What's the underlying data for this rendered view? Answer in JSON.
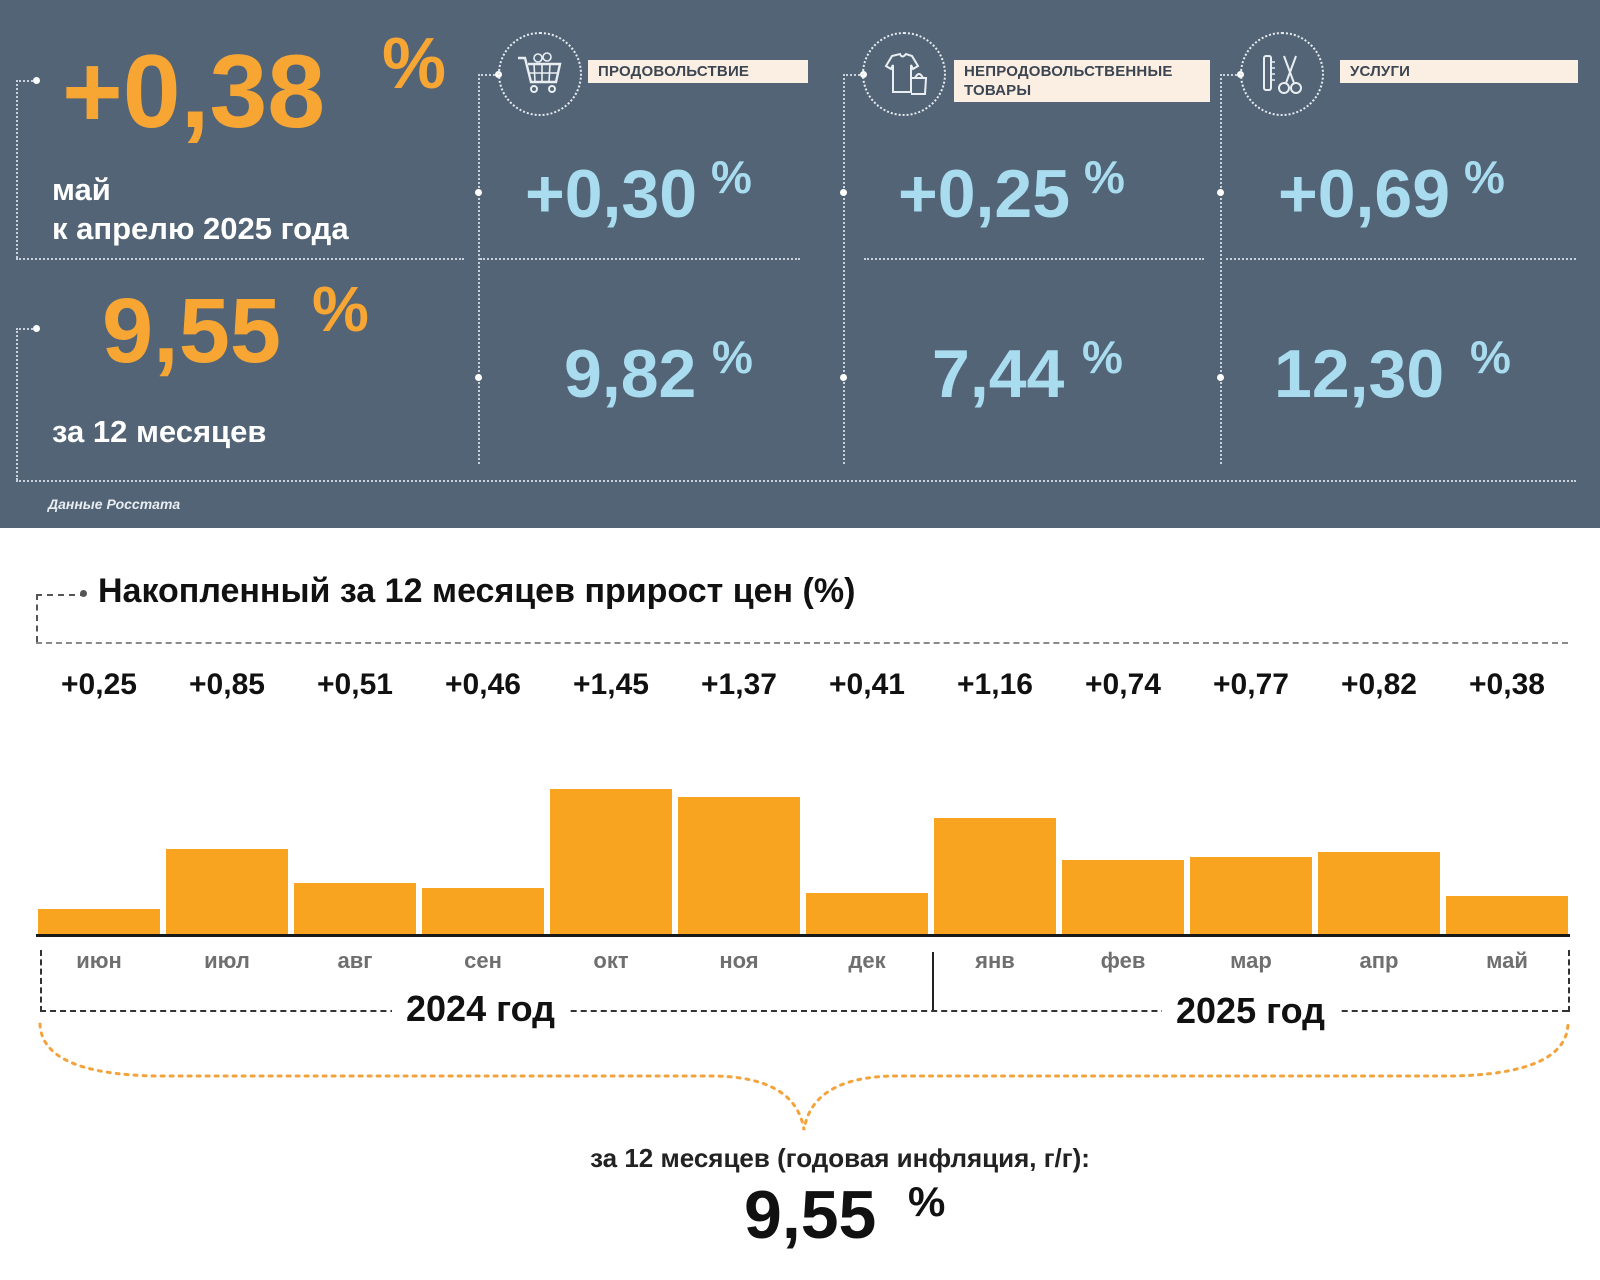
{
  "headline": {
    "monthly_change": "+0,38",
    "monthly_pct": "%",
    "monthly_label_line1": "май",
    "monthly_label_line2": "к апрелю 2025 года",
    "annual_value": "9,55",
    "annual_pct": "%",
    "annual_label": "за 12 месяцев"
  },
  "categories": [
    {
      "icon": "shopping-cart-icon",
      "label": "ПРОДОВОЛЬСТВИЕ",
      "monthly": "+0,30",
      "annual": "9,82",
      "pct": "%"
    },
    {
      "icon": "clothes-and-bag-icon",
      "label_line1": "НЕПРОДОВОЛЬСТВЕННЫЕ",
      "label_line2": "ТОВАРЫ",
      "monthly": "+0,25",
      "annual": "7,44",
      "pct": "%"
    },
    {
      "icon": "scissors-and-comb-icon",
      "label": "УСЛУГИ",
      "monthly": "+0,69",
      "annual": "12,30",
      "pct": "%"
    }
  ],
  "source_note": "Данные Росстата",
  "colors": {
    "panel_bg": "#536476",
    "orange": "#f7a634",
    "light_blue": "#a9dcef",
    "bar": "#f9a421",
    "label_bg": "#fbeee2"
  },
  "chart_data": {
    "type": "bar",
    "title": "Накопленный за 12 месяцев прирост цен (%)",
    "categories": [
      "июн",
      "июл",
      "авг",
      "сен",
      "окт",
      "ноя",
      "дек",
      "янв",
      "фев",
      "мар",
      "апр",
      "май"
    ],
    "values": [
      0.25,
      0.85,
      0.51,
      0.46,
      1.45,
      1.37,
      0.41,
      1.16,
      0.74,
      0.77,
      0.82,
      0.38
    ],
    "value_labels": [
      "+0,25",
      "+0,85",
      "+0,51",
      "+0,46",
      "+1,45",
      "+1,37",
      "+0,41",
      "+1,16",
      "+0,74",
      "+0,77",
      "+0,82",
      "+0,38"
    ],
    "year_groups": [
      {
        "label": "2024 год",
        "months": [
          "июн",
          "июл",
          "авг",
          "сен",
          "окт",
          "ноя",
          "дек"
        ]
      },
      {
        "label": "2025 год",
        "months": [
          "янв",
          "фев",
          "мар",
          "апр",
          "май"
        ]
      }
    ],
    "ylim": [
      0,
      1.5
    ],
    "grid": false,
    "summary_caption": "за 12 месяцев (годовая инфляция, г/г):",
    "summary_value": "9,55",
    "summary_pct": "%"
  }
}
